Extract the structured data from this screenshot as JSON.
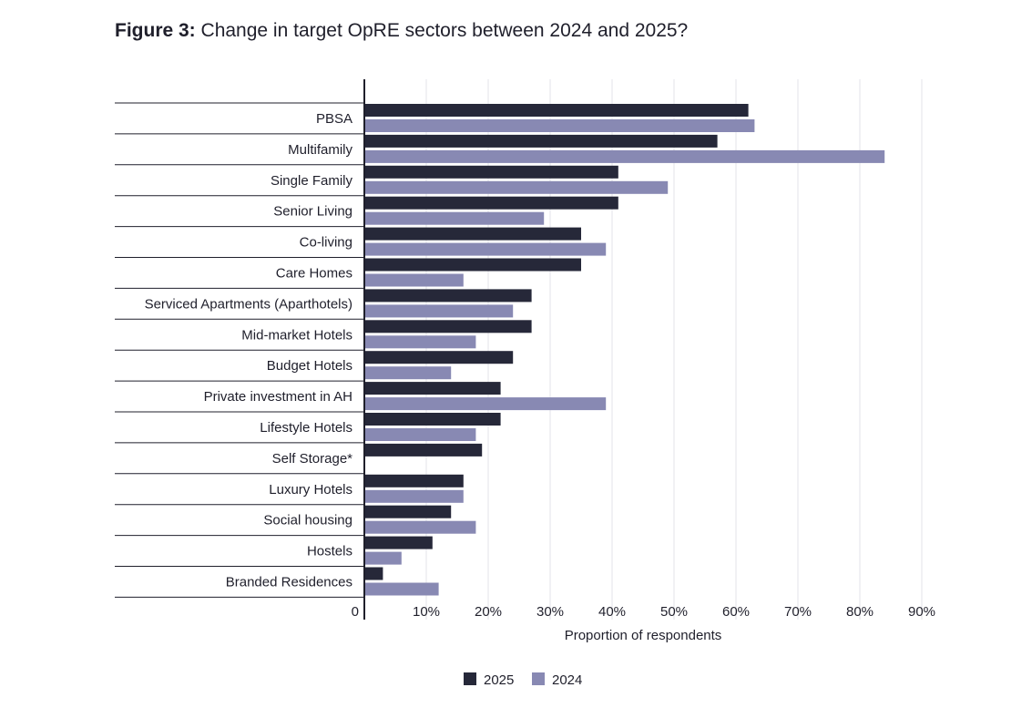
{
  "figure": {
    "label": "Figure 3:",
    "title": "Change in target OpRE sectors between 2024 and 2025?"
  },
  "chart_data": {
    "type": "bar",
    "orientation": "horizontal",
    "title": "Change in target OpRE sectors between 2024 and 2025?",
    "xlabel": "Proportion of respondents",
    "ylabel": "",
    "xlim": [
      0,
      90
    ],
    "xticks": [
      0,
      10,
      20,
      30,
      40,
      50,
      60,
      70,
      80,
      90
    ],
    "xtick_labels": [
      "0",
      "10%",
      "20%",
      "30%",
      "40%",
      "50%",
      "60%",
      "70%",
      "80%",
      "90%"
    ],
    "grid": true,
    "legend_position": "bottom-center",
    "categories": [
      "PBSA",
      "Multifamily",
      "Single Family",
      "Senior Living",
      "Co-living",
      "Care Homes",
      "Serviced Apartments (Aparthotels)",
      "Mid-market Hotels",
      "Budget Hotels",
      "Private investment in AH",
      "Lifestyle Hotels",
      "Self Storage*",
      "Luxury Hotels",
      "Social housing",
      "Hostels",
      "Branded Residences"
    ],
    "series": [
      {
        "name": "2025",
        "color": "#262839",
        "values": [
          62,
          57,
          41,
          41,
          35,
          35,
          27,
          27,
          24,
          22,
          22,
          19,
          16,
          14,
          11,
          3
        ]
      },
      {
        "name": "2024",
        "color": "#8889b3",
        "values": [
          63,
          84,
          49,
          29,
          39,
          16,
          24,
          18,
          14,
          39,
          18,
          null,
          16,
          18,
          6,
          12
        ]
      }
    ]
  }
}
